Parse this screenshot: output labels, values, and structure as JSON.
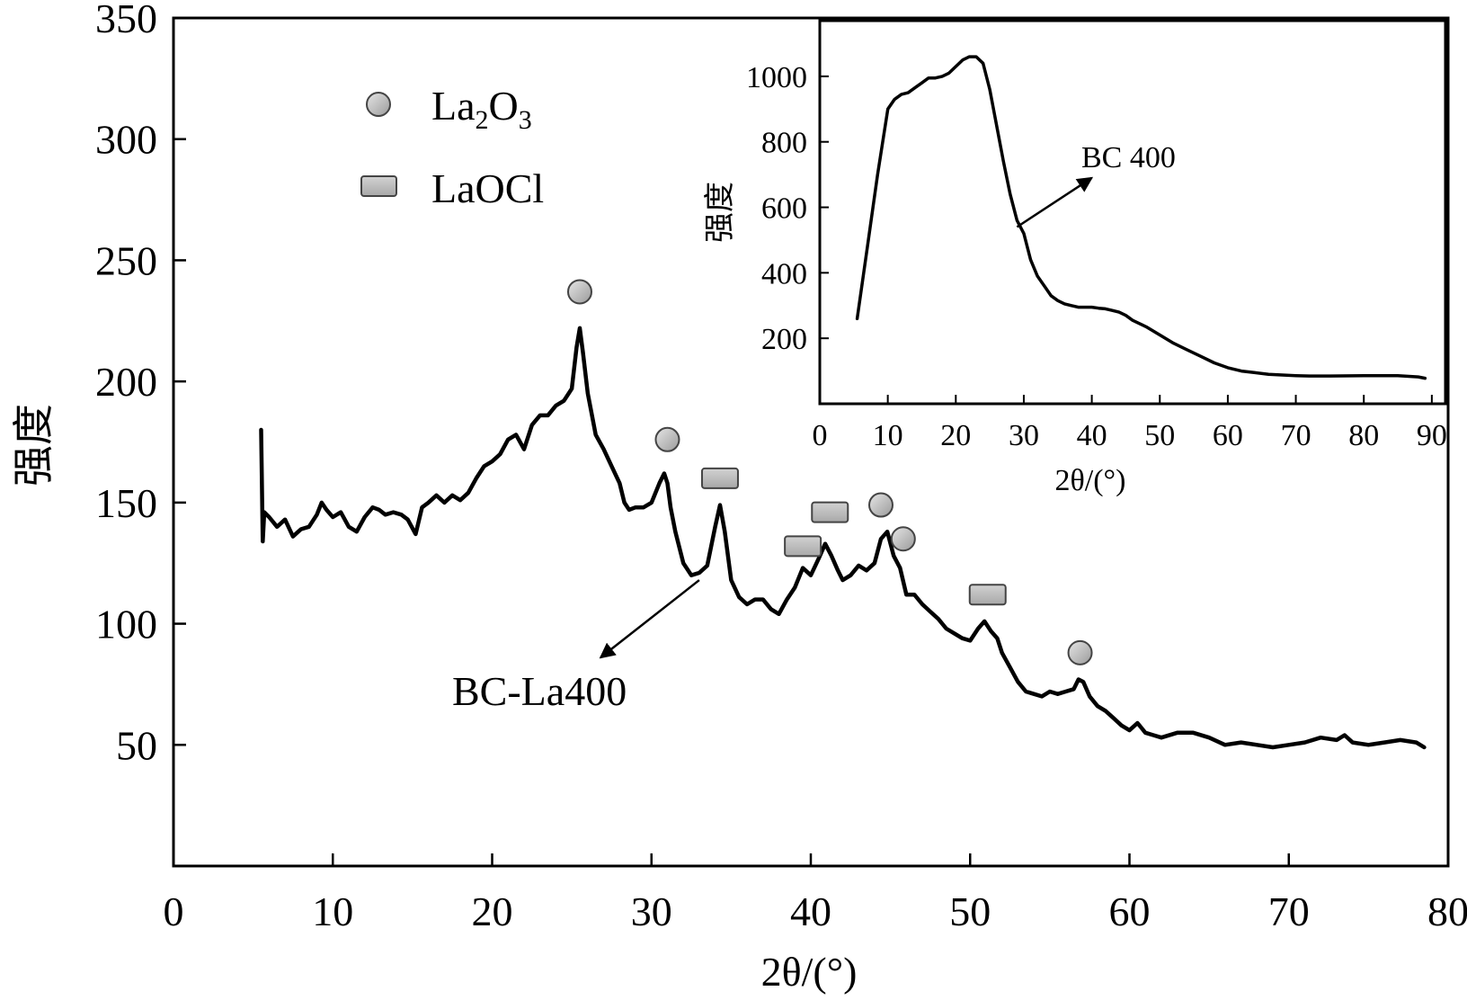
{
  "chart_data": [
    {
      "type": "line",
      "xlabel": "2θ/(°)",
      "ylabel": "强度",
      "xlim": [
        0,
        80
      ],
      "ylim": [
        0,
        350
      ],
      "xticks": [
        0,
        10,
        20,
        30,
        40,
        50,
        60,
        70,
        80
      ],
      "yticks": [
        50,
        100,
        150,
        200,
        250,
        300,
        350
      ],
      "grid": false,
      "legend_position": "top-left",
      "legend": [
        {
          "name": "La2O3",
          "base": "La",
          "sub1": "2",
          "mid": "O",
          "sub2": "3",
          "marker": "circle"
        },
        {
          "name": "LaOCl",
          "marker": "rectangle"
        }
      ],
      "series": [
        {
          "name": "BC-La400",
          "x": [
            5.5,
            5.6,
            5.7,
            6.0,
            6.5,
            7.0,
            7.5,
            8.0,
            8.5,
            9.0,
            9.3,
            9.6,
            10.0,
            10.5,
            11.0,
            11.5,
            12.0,
            12.5,
            12.9,
            13.3,
            13.8,
            14.3,
            14.7,
            15.2,
            15.6,
            16.0,
            16.5,
            17.0,
            17.5,
            18.0,
            18.5,
            19.0,
            19.5,
            20.0,
            20.5,
            21.0,
            21.5,
            22.0,
            22.5,
            23.0,
            23.5,
            24.0,
            24.5,
            25.0,
            25.3,
            25.5,
            25.7,
            26.0,
            26.5,
            27.0,
            27.5,
            28.0,
            28.3,
            28.6,
            29.0,
            29.5,
            30.0,
            30.5,
            30.8,
            31.0,
            31.2,
            31.5,
            32.0,
            32.5,
            33.0,
            33.5,
            34.0,
            34.3,
            34.6,
            35.0,
            35.5,
            36.0,
            36.5,
            37.0,
            37.5,
            38.0,
            38.5,
            39.0,
            39.5,
            40.0,
            40.5,
            40.9,
            41.3,
            41.7,
            42.0,
            42.5,
            43.0,
            43.5,
            44.0,
            44.4,
            44.8,
            45.2,
            45.6,
            46.0,
            46.5,
            47.0,
            47.5,
            48.0,
            48.5,
            49.0,
            49.5,
            50.0,
            50.5,
            50.9,
            51.3,
            51.7,
            52.0,
            52.5,
            53.0,
            53.5,
            54.0,
            54.5,
            55.0,
            55.5,
            56.0,
            56.5,
            56.8,
            57.1,
            57.5,
            58.0,
            58.5,
            59.0,
            59.5,
            60.0,
            60.5,
            61.0,
            61.5,
            62.0,
            63.0,
            64.0,
            65.0,
            66.0,
            67.0,
            68.0,
            69.0,
            70.0,
            71.0,
            72.0,
            73.0,
            73.5,
            74.0,
            75.0,
            76.0,
            77.0,
            78.0,
            78.5
          ],
          "values": [
            180,
            134,
            146,
            144,
            140,
            143,
            136,
            139,
            140,
            145,
            150,
            147,
            144,
            146,
            140,
            138,
            144,
            148,
            147,
            145,
            146,
            145,
            143,
            137,
            148,
            150,
            153,
            150,
            153,
            151,
            154,
            160,
            165,
            167,
            170,
            176,
            178,
            172,
            182,
            186,
            186,
            190,
            192,
            197,
            214,
            222,
            212,
            195,
            178,
            172,
            165,
            158,
            150,
            147,
            148,
            148,
            150,
            158,
            162,
            158,
            148,
            138,
            125,
            120,
            121,
            124,
            140,
            149,
            138,
            118,
            111,
            108,
            110,
            110,
            106,
            104,
            110,
            115,
            123,
            120,
            127,
            133,
            128,
            122,
            118,
            120,
            124,
            122,
            125,
            135,
            138,
            128,
            123,
            112,
            112,
            108,
            105,
            102,
            98,
            96,
            94,
            93,
            98,
            101,
            97,
            94,
            88,
            82,
            76,
            72,
            71,
            70,
            72,
            71,
            72,
            73,
            77,
            76,
            70,
            66,
            64,
            61,
            58,
            56,
            59,
            55,
            54,
            53,
            55,
            55,
            53,
            50,
            51,
            50,
            49,
            50,
            51,
            53,
            52,
            54,
            51,
            50,
            51,
            52,
            51,
            49
          ]
        }
      ],
      "peak_markers": [
        {
          "marker": "circle",
          "x": 25.5,
          "y": 237
        },
        {
          "marker": "circle",
          "x": 31.0,
          "y": 176
        },
        {
          "marker": "rectangle",
          "x": 34.3,
          "y": 160
        },
        {
          "marker": "rectangle",
          "x": 39.5,
          "y": 132
        },
        {
          "marker": "rectangle",
          "x": 41.2,
          "y": 146
        },
        {
          "marker": "circle",
          "x": 44.4,
          "y": 149
        },
        {
          "marker": "circle",
          "x": 45.8,
          "y": 135
        },
        {
          "marker": "rectangle",
          "x": 51.1,
          "y": 112
        },
        {
          "marker": "circle",
          "x": 56.9,
          "y": 88
        }
      ],
      "annotation": {
        "text": "BC-La400",
        "arrow_from": [
          33.0,
          118
        ],
        "arrow_to": [
          26.8,
          86
        ]
      }
    },
    {
      "type": "line",
      "inset": true,
      "xlabel": "2θ/(°)",
      "ylabel": "强度",
      "xlim": [
        0,
        92
      ],
      "ylim": [
        0,
        1170
      ],
      "xticks": [
        0,
        10,
        20,
        30,
        40,
        50,
        60,
        70,
        80,
        90
      ],
      "yticks": [
        200,
        400,
        600,
        800,
        1000
      ],
      "grid": false,
      "series": [
        {
          "name": "BC 400",
          "x": [
            5.5,
            7.0,
            8.5,
            10.0,
            11.0,
            12.0,
            13.0,
            14.0,
            15.0,
            16.0,
            17.0,
            18.0,
            19.0,
            20.0,
            21.0,
            22.0,
            23.0,
            24.0,
            25.0,
            26.0,
            27.0,
            28.0,
            29.0,
            30.0,
            31.0,
            32.0,
            33.0,
            34.0,
            35.0,
            36.0,
            37.0,
            38.0,
            39.0,
            40.0,
            41.0,
            42.0,
            43.0,
            44.0,
            45.0,
            46.0,
            48.0,
            50.0,
            52.0,
            54.0,
            56.0,
            58.0,
            60.0,
            62.0,
            64.0,
            66.0,
            68.0,
            70.0,
            72.0,
            75.0,
            80.0,
            85.0,
            88.0,
            89.0
          ],
          "values": [
            260,
            480,
            700,
            900,
            930,
            945,
            950,
            965,
            980,
            995,
            995,
            1000,
            1010,
            1030,
            1050,
            1060,
            1060,
            1040,
            960,
            850,
            740,
            640,
            560,
            520,
            440,
            390,
            360,
            330,
            315,
            305,
            300,
            295,
            295,
            295,
            292,
            290,
            285,
            280,
            270,
            255,
            235,
            210,
            185,
            165,
            145,
            125,
            110,
            100,
            95,
            90,
            88,
            86,
            85,
            85,
            86,
            86,
            82,
            78
          ]
        }
      ],
      "annotation": {
        "text": "BC 400",
        "arrow_from": [
          29.0,
          540
        ],
        "arrow_to": [
          40.0,
          690
        ]
      }
    }
  ]
}
